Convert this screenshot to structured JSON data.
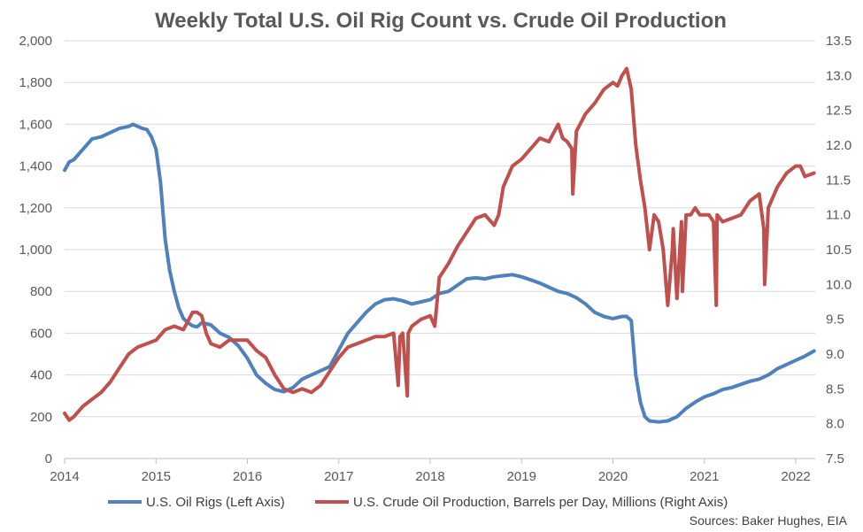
{
  "chart_data": {
    "type": "line",
    "title": "Weekly Total U.S. Oil Rig Count vs. Crude Oil Production",
    "source": "Sources: Baker Hughes, EIA",
    "x_ticks": [
      "2014",
      "2015",
      "2016",
      "2017",
      "2018",
      "2019",
      "2020",
      "2021",
      "2022"
    ],
    "xlim": [
      2014.0,
      2022.2
    ],
    "left_axis": {
      "ylim": [
        0,
        2000
      ],
      "ticks": [
        "0",
        "200",
        "400",
        "600",
        "800",
        "1,000",
        "1,200",
        "1,400",
        "1,600",
        "1,800",
        "2,000"
      ]
    },
    "right_axis": {
      "ylim": [
        7.5,
        13.5
      ],
      "ticks": [
        "7.5",
        "8.0",
        "8.5",
        "9.0",
        "9.5",
        "10.0",
        "10.5",
        "11.0",
        "11.5",
        "12.0",
        "12.5",
        "13.0",
        "13.5"
      ]
    },
    "grid": true,
    "legend_position": "bottom",
    "series": [
      {
        "name": "U.S. Oil Rigs (Left Axis)",
        "axis": "left",
        "color": "#4F81BD",
        "x": [
          2014.0,
          2014.05,
          2014.1,
          2014.2,
          2014.3,
          2014.4,
          2014.5,
          2014.6,
          2014.7,
          2014.75,
          2014.8,
          2014.85,
          2014.9,
          2014.95,
          2015.0,
          2015.05,
          2015.1,
          2015.15,
          2015.2,
          2015.25,
          2015.3,
          2015.35,
          2015.4,
          2015.45,
          2015.5,
          2015.6,
          2015.7,
          2015.8,
          2015.9,
          2016.0,
          2016.1,
          2016.2,
          2016.3,
          2016.4,
          2016.5,
          2016.6,
          2016.7,
          2016.8,
          2016.9,
          2017.0,
          2017.1,
          2017.2,
          2017.3,
          2017.4,
          2017.5,
          2017.6,
          2017.7,
          2017.8,
          2017.9,
          2018.0,
          2018.1,
          2018.2,
          2018.3,
          2018.4,
          2018.5,
          2018.6,
          2018.7,
          2018.8,
          2018.9,
          2019.0,
          2019.1,
          2019.2,
          2019.3,
          2019.4,
          2019.5,
          2019.6,
          2019.7,
          2019.8,
          2019.9,
          2020.0,
          2020.1,
          2020.15,
          2020.2,
          2020.25,
          2020.3,
          2020.35,
          2020.4,
          2020.5,
          2020.6,
          2020.7,
          2020.8,
          2020.9,
          2021.0,
          2021.1,
          2021.2,
          2021.3,
          2021.4,
          2021.5,
          2021.6,
          2021.7,
          2021.8,
          2021.9,
          2022.0,
          2022.1,
          2022.2
        ],
        "values": [
          1380,
          1420,
          1430,
          1480,
          1530,
          1540,
          1560,
          1580,
          1590,
          1600,
          1590,
          1580,
          1575,
          1540,
          1480,
          1320,
          1050,
          900,
          800,
          720,
          670,
          650,
          635,
          630,
          650,
          640,
          600,
          580,
          540,
          480,
          400,
          360,
          330,
          320,
          340,
          380,
          400,
          420,
          440,
          520,
          600,
          650,
          700,
          740,
          760,
          765,
          755,
          740,
          750,
          760,
          790,
          800,
          830,
          860,
          865,
          860,
          870,
          875,
          880,
          870,
          855,
          840,
          820,
          800,
          790,
          770,
          740,
          700,
          680,
          670,
          680,
          680,
          660,
          400,
          270,
          200,
          180,
          175,
          180,
          200,
          240,
          270,
          295,
          310,
          330,
          340,
          355,
          370,
          380,
          400,
          430,
          450,
          470,
          490,
          515
        ]
      },
      {
        "name": "U.S. Crude Oil Production, Barrels per Day, Millions (Right Axis)",
        "axis": "right",
        "color": "#C0504D",
        "x": [
          2014.0,
          2014.05,
          2014.1,
          2014.2,
          2014.3,
          2014.4,
          2014.5,
          2014.6,
          2014.7,
          2014.8,
          2014.9,
          2015.0,
          2015.1,
          2015.2,
          2015.3,
          2015.4,
          2015.45,
          2015.5,
          2015.55,
          2015.6,
          2015.7,
          2015.8,
          2015.9,
          2016.0,
          2016.1,
          2016.2,
          2016.3,
          2016.4,
          2016.5,
          2016.6,
          2016.7,
          2016.8,
          2016.9,
          2017.0,
          2017.1,
          2017.2,
          2017.3,
          2017.4,
          2017.5,
          2017.6,
          2017.65,
          2017.67,
          2017.7,
          2017.75,
          2017.76,
          2017.8,
          2017.9,
          2018.0,
          2018.05,
          2018.1,
          2018.2,
          2018.3,
          2018.4,
          2018.5,
          2018.6,
          2018.7,
          2018.75,
          2018.8,
          2018.9,
          2019.0,
          2019.1,
          2019.2,
          2019.3,
          2019.4,
          2019.45,
          2019.5,
          2019.55,
          2019.56,
          2019.6,
          2019.7,
          2019.8,
          2019.9,
          2020.0,
          2020.05,
          2020.1,
          2020.15,
          2020.2,
          2020.25,
          2020.3,
          2020.35,
          2020.4,
          2020.45,
          2020.5,
          2020.55,
          2020.6,
          2020.65,
          2020.66,
          2020.7,
          2020.75,
          2020.76,
          2020.8,
          2020.85,
          2020.9,
          2020.95,
          2021.0,
          2021.05,
          2021.1,
          2021.13,
          2021.14,
          2021.2,
          2021.3,
          2021.4,
          2021.5,
          2021.6,
          2021.65,
          2021.66,
          2021.7,
          2021.8,
          2021.9,
          2022.0,
          2022.05,
          2022.1,
          2022.2
        ],
        "values": [
          8.15,
          8.05,
          8.1,
          8.25,
          8.35,
          8.45,
          8.6,
          8.8,
          9.0,
          9.1,
          9.15,
          9.2,
          9.35,
          9.4,
          9.35,
          9.6,
          9.6,
          9.55,
          9.3,
          9.15,
          9.1,
          9.2,
          9.2,
          9.2,
          9.05,
          8.95,
          8.7,
          8.5,
          8.45,
          8.5,
          8.45,
          8.55,
          8.75,
          8.95,
          9.1,
          9.15,
          9.2,
          9.25,
          9.25,
          9.3,
          8.55,
          9.25,
          9.3,
          8.4,
          9.3,
          9.4,
          9.5,
          9.55,
          9.4,
          10.1,
          10.3,
          10.55,
          10.75,
          10.95,
          11.0,
          10.85,
          11.0,
          11.4,
          11.7,
          11.8,
          11.95,
          12.1,
          12.05,
          12.3,
          12.1,
          12.05,
          11.95,
          11.3,
          12.2,
          12.45,
          12.6,
          12.8,
          12.9,
          12.85,
          13.0,
          13.1,
          12.8,
          12.0,
          11.5,
          11.1,
          10.5,
          11.0,
          10.9,
          10.5,
          9.7,
          10.5,
          10.8,
          9.8,
          10.9,
          9.9,
          11.0,
          11.0,
          11.1,
          11.0,
          11.0,
          11.0,
          10.9,
          9.7,
          11.0,
          10.9,
          10.95,
          11.0,
          11.2,
          11.3,
          10.8,
          10.0,
          11.1,
          11.4,
          11.6,
          11.7,
          11.7,
          11.55,
          11.6
        ]
      }
    ]
  }
}
